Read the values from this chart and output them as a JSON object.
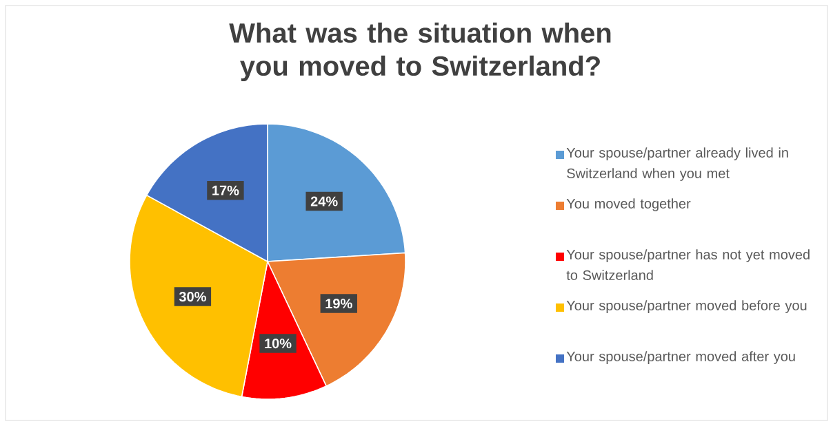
{
  "chart_data": {
    "type": "pie",
    "title": "What was the situation when you moved to Switzerland?",
    "categories": [
      "Your spouse/partner already lived in Switzerland when you met",
      "You moved together",
      "Your spouse/partner has not yet moved to Switzerland",
      "Your spouse/partner moved before you",
      "Your spouse/partner moved after you"
    ],
    "values": [
      24,
      19,
      10,
      30,
      17
    ],
    "colors": [
      "#5b9bd5",
      "#ed7d31",
      "#ff0000",
      "#ffc000",
      "#4472c4"
    ],
    "value_labels": [
      "24%",
      "19%",
      "10%",
      "30%",
      "17%"
    ],
    "legend": "right"
  }
}
